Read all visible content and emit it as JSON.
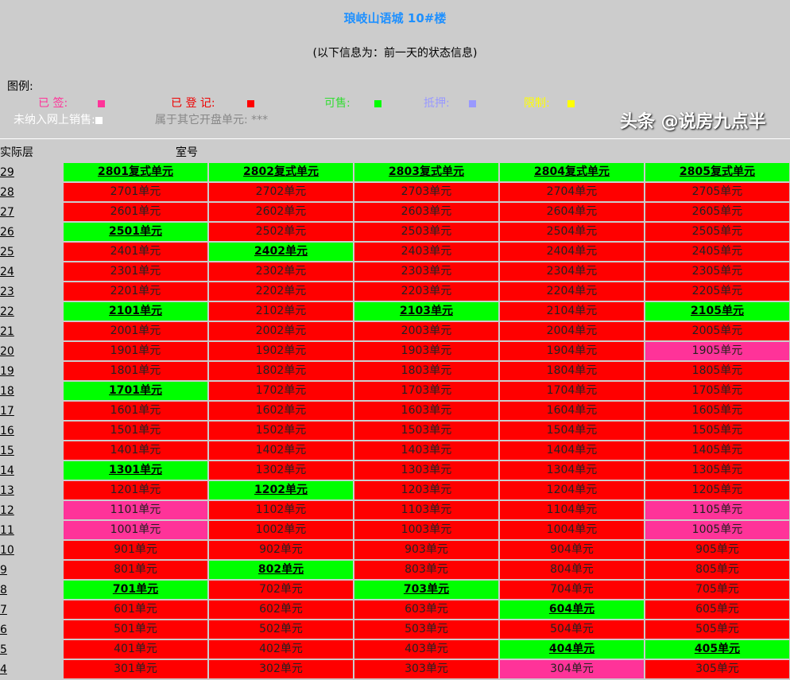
{
  "title": "琅岐山语城  10#楼",
  "note": "(以下信息为：前一天的状态信息)",
  "legend": {
    "heading": "图例:",
    "signed": "已  签:",
    "registered": "已  登  记:",
    "forsale": "可售:",
    "mortgage": "抵押:",
    "limited": "限制:",
    "notonline": "未纳入网上销售:",
    "other": "属于其它开盘单元: ***"
  },
  "colors": {
    "signed": "#ff3399",
    "registered": "#ff0000",
    "forsale": "#00ff00",
    "mortgage": "#9999ff",
    "limited": "#ffff00",
    "notonline": "#ffffff"
  },
  "headers": {
    "floor": "实际层",
    "room": "室号"
  },
  "rows": [
    [
      "29",
      "ggggg",
      "2801复式单元",
      "2802复式单元",
      "2803复式单元",
      "2804复式单元",
      "2805复式单元"
    ],
    [
      "28",
      "rrrrr"
    ],
    [
      "27",
      "rrrrr"
    ],
    [
      "26",
      "grrrr"
    ],
    [
      "25",
      "rgrrr"
    ],
    [
      "24",
      "rrrrr"
    ],
    [
      "23",
      "rrrrr"
    ],
    [
      "22",
      "grgrg"
    ],
    [
      "21",
      "rrrrr"
    ],
    [
      "20",
      "rrrrp"
    ],
    [
      "19",
      "rrrrr"
    ],
    [
      "18",
      "grrrr"
    ],
    [
      "17",
      "rrrrr"
    ],
    [
      "16",
      "rrrrr"
    ],
    [
      "15",
      "rrrrr"
    ],
    [
      "14",
      "grrrr"
    ],
    [
      "13",
      "rgrrr"
    ],
    [
      "12",
      "prrrp"
    ],
    [
      "11",
      "prrrp"
    ],
    [
      "10",
      "rrrrr"
    ],
    [
      "9",
      "rgrrr"
    ],
    [
      "8",
      "grgrr"
    ],
    [
      "7",
      "rrrgr"
    ],
    [
      "6",
      "rrrrr"
    ],
    [
      "5",
      "rrrgg"
    ],
    [
      "4",
      "rrrpr"
    ]
  ],
  "watermark": "头条 @说房九点半"
}
